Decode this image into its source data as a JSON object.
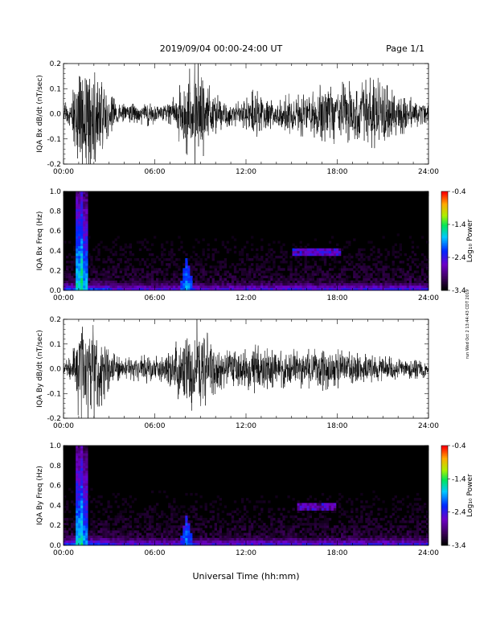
{
  "header": {
    "title": "2019/09/04  00:00-24:00 UT",
    "page": "Page 1/1"
  },
  "footer": {
    "xlabel": "Universal Time (hh:mm)"
  },
  "side_stamp": "run Wed Oct  2 13:44:43 CDT 2019",
  "colors": {
    "line": "#000000",
    "background": "#000000"
  },
  "chart_data": [
    {
      "type": "line",
      "panel": "bx-dbdt",
      "ylabel": "IQA Bx dB/dt (nT/sec)",
      "xlim": [
        "00:00",
        "24:00"
      ],
      "ylim": [
        -0.2,
        0.2
      ],
      "x_ticks": [
        "00:00",
        "06:00",
        "12:00",
        "18:00",
        "24:00"
      ],
      "y_ticks": [
        "-0.2",
        "-0.1",
        "0.0",
        "0.1",
        "0.2"
      ],
      "envelope": {
        "hours": [
          0,
          0.5,
          1,
          1.5,
          2,
          2.5,
          3,
          3.5,
          4,
          4.5,
          5,
          5.5,
          6,
          6.5,
          7,
          7.5,
          8,
          8.5,
          9,
          9.5,
          10,
          10.5,
          11,
          11.5,
          12,
          12.5,
          13,
          13.5,
          14,
          14.5,
          15,
          15.5,
          16,
          16.5,
          17,
          17.5,
          18,
          18.5,
          19,
          19.5,
          20,
          20.5,
          21,
          21.5,
          22,
          22.5,
          23,
          23.5,
          24
        ],
        "amplitude": [
          0.04,
          0.06,
          0.2,
          0.2,
          0.2,
          0.15,
          0.08,
          0.05,
          0.04,
          0.04,
          0.04,
          0.05,
          0.04,
          0.05,
          0.06,
          0.1,
          0.15,
          0.2,
          0.2,
          0.12,
          0.08,
          0.06,
          0.05,
          0.05,
          0.06,
          0.1,
          0.08,
          0.06,
          0.06,
          0.08,
          0.08,
          0.09,
          0.09,
          0.1,
          0.12,
          0.12,
          0.12,
          0.13,
          0.13,
          0.12,
          0.14,
          0.15,
          0.13,
          0.1,
          0.08,
          0.08,
          0.07,
          0.06,
          0.04
        ]
      }
    },
    {
      "type": "heatmap",
      "panel": "bx-spectrogram",
      "ylabel": "IQA Bx Freq (Hz)",
      "xlim": [
        "00:00",
        "24:00"
      ],
      "ylim": [
        0.0,
        1.0
      ],
      "x_ticks": [
        "00:00",
        "06:00",
        "12:00",
        "18:00",
        "24:00"
      ],
      "y_ticks": [
        "0.0",
        "0.2",
        "0.4",
        "0.6",
        "0.8",
        "1.0"
      ],
      "colorbar": {
        "label": "Log₁₀ Power",
        "range": [
          -3.4,
          -0.4
        ],
        "ticks": [
          "-0.4",
          "-1.4",
          "-2.4",
          "-3.4"
        ]
      },
      "features": [
        {
          "kind": "vertical-streak",
          "hour": 0.95,
          "power": -1.6
        },
        {
          "kind": "vertical-streak",
          "hour": 1.15,
          "power": -1.4
        },
        {
          "kind": "vertical-streak",
          "hour": 1.45,
          "power": -1.8
        },
        {
          "kind": "burst",
          "hour": 8.1,
          "fmax": 0.35,
          "power": -1.8
        },
        {
          "kind": "band",
          "hours": [
            15.1,
            18.2
          ],
          "freq": 0.38,
          "power": -2.3
        }
      ]
    },
    {
      "type": "line",
      "panel": "by-dbdt",
      "ylabel": "IQA By dB/dt (nT/sec)",
      "xlim": [
        "00:00",
        "24:00"
      ],
      "ylim": [
        -0.2,
        0.2
      ],
      "x_ticks": [
        "00:00",
        "06:00",
        "12:00",
        "18:00",
        "24:00"
      ],
      "y_ticks": [
        "-0.2",
        "-0.1",
        "0.0",
        "0.1",
        "0.2"
      ],
      "envelope": {
        "hours": [
          0,
          0.5,
          1,
          1.5,
          2,
          2.5,
          3,
          3.5,
          4,
          4.5,
          5,
          5.5,
          6,
          6.5,
          7,
          7.5,
          8,
          8.5,
          9,
          9.5,
          10,
          10.5,
          11,
          11.5,
          12,
          12.5,
          13,
          13.5,
          14,
          14.5,
          15,
          15.5,
          16,
          16.5,
          17,
          17.5,
          18,
          18.5,
          19,
          19.5,
          20,
          20.5,
          21,
          21.5,
          22,
          22.5,
          23,
          23.5,
          24
        ],
        "amplitude": [
          0.03,
          0.05,
          0.2,
          0.2,
          0.2,
          0.15,
          0.08,
          0.05,
          0.04,
          0.05,
          0.05,
          0.06,
          0.05,
          0.06,
          0.07,
          0.12,
          0.16,
          0.2,
          0.2,
          0.14,
          0.1,
          0.08,
          0.07,
          0.07,
          0.08,
          0.1,
          0.09,
          0.08,
          0.07,
          0.08,
          0.08,
          0.08,
          0.08,
          0.08,
          0.09,
          0.08,
          0.08,
          0.07,
          0.07,
          0.06,
          0.06,
          0.05,
          0.05,
          0.05,
          0.04,
          0.04,
          0.04,
          0.04,
          0.03
        ]
      }
    },
    {
      "type": "heatmap",
      "panel": "by-spectrogram",
      "ylabel": "IQA By Freq (Hz)",
      "xlim": [
        "00:00",
        "24:00"
      ],
      "ylim": [
        0.0,
        1.0
      ],
      "x_ticks": [
        "00:00",
        "06:00",
        "12:00",
        "18:00",
        "24:00"
      ],
      "y_ticks": [
        "0.0",
        "0.2",
        "0.4",
        "0.6",
        "0.8",
        "1.0"
      ],
      "colorbar": {
        "label": "Log₁₀ Power",
        "range": [
          -3.4,
          -0.4
        ],
        "ticks": [
          "-0.4",
          "-1.4",
          "-2.4",
          "-3.4"
        ]
      },
      "features": [
        {
          "kind": "vertical-streak",
          "hour": 0.95,
          "power": -1.7
        },
        {
          "kind": "vertical-streak",
          "hour": 1.15,
          "power": -1.5
        },
        {
          "kind": "vertical-streak",
          "hour": 1.45,
          "power": -1.9
        },
        {
          "kind": "burst",
          "hour": 8.1,
          "fmax": 0.3,
          "power": -1.9
        },
        {
          "kind": "band",
          "hours": [
            15.3,
            18.0
          ],
          "freq": 0.38,
          "power": -2.4
        }
      ]
    }
  ]
}
